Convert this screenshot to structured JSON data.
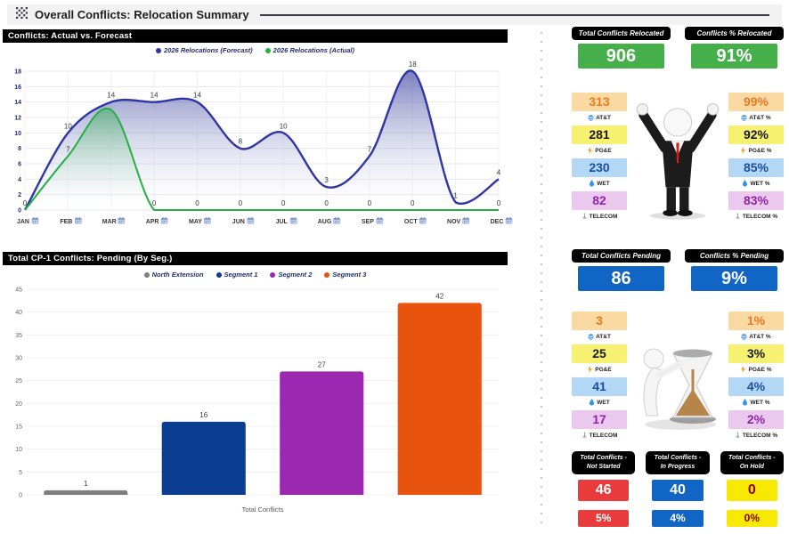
{
  "header": {
    "title": "Overall Conflicts: Relocation Summary"
  },
  "panels": {
    "forecast_title": "Conflicts:  Actual vs. Forecast",
    "pending_title": "Total CP-1 Conflicts:  Pending (By Seg.)"
  },
  "chart_data": [
    {
      "type": "area",
      "title": "Conflicts: Actual vs. Forecast",
      "categories": [
        "JAN",
        "FEB",
        "MAR",
        "APR",
        "MAY",
        "JUN",
        "JUL",
        "AUG",
        "SEP",
        "OCT",
        "NOV",
        "DEC"
      ],
      "series": [
        {
          "name": "2026 Relocations (Forecast)",
          "color": "#2e35a5",
          "fill_top": "#4c52a8",
          "values": [
            0,
            10,
            14,
            14,
            14,
            8,
            10,
            3,
            7,
            18,
            1,
            4
          ],
          "labels": [
            "0",
            "10",
            "14",
            "14",
            "14",
            "8",
            "10",
            "3",
            "7",
            "18",
            "1",
            "4"
          ]
        },
        {
          "name": "2026 Relocations (Actual)",
          "color": "#27ae45",
          "fill_top": "#3fae62",
          "values": [
            0,
            7,
            13,
            0,
            0,
            0,
            0,
            0,
            0,
            0,
            0,
            0
          ],
          "labels": [
            null,
            "7",
            null,
            "0",
            "0",
            "0",
            "0",
            "0",
            "0",
            "0",
            null,
            "0"
          ]
        }
      ],
      "ylim": [
        0,
        18
      ],
      "ytick_step": 2,
      "grid": true,
      "legend_position": "top"
    },
    {
      "type": "bar",
      "title": "Total CP-1 Conflicts: Pending (By Seg.)",
      "categories": [
        "North Extension",
        "Segment 1",
        "Segment 2",
        "Segment 3"
      ],
      "values": [
        1,
        16,
        27,
        42
      ],
      "colors": [
        "#7f7f7f",
        "#0b3d91",
        "#9c27b0",
        "#e8540e"
      ],
      "xlabel": "Total Conflicts",
      "ylim": [
        0,
        45
      ],
      "ytick_step": 5,
      "grid": true,
      "legend_position": "top"
    }
  ],
  "kpi": {
    "relocated": {
      "total_label": "Total Conflicts Relocated",
      "total_value": "906",
      "pct_label": "Conflicts % Relocated",
      "pct_value": "91%",
      "box_color": "#45b049",
      "utilities": [
        {
          "name": "AT&T",
          "icon": "att-icon",
          "count": "313",
          "pct": "99%",
          "bg": "#fbd9a3",
          "fg": "#e87a22"
        },
        {
          "name": "PG&E",
          "icon": "bolt-icon",
          "count": "281",
          "pct": "92%",
          "bg": "#f7f172",
          "fg": "#1a1a1a"
        },
        {
          "name": "WET",
          "icon": "water-drop-icon",
          "count": "230",
          "pct": "85%",
          "bg": "#b3d8f6",
          "fg": "#1d4fa1"
        },
        {
          "name": "TELECOM",
          "icon": "antenna-icon",
          "count": "82",
          "pct": "83%",
          "bg": "#ebc8ee",
          "fg": "#8f24a8"
        }
      ]
    },
    "pending": {
      "total_label": "Total Conflicts Pending",
      "total_value": "86",
      "pct_label": "Conflicts % Pending",
      "pct_value": "9%",
      "box_color": "#1165c5",
      "utilities": [
        {
          "name": "AT&T",
          "icon": "att-icon",
          "count": "3",
          "pct": "1%",
          "bg": "#fbd9a3",
          "fg": "#e87a22"
        },
        {
          "name": "PG&E",
          "icon": "bolt-icon",
          "count": "25",
          "pct": "3%",
          "bg": "#f7f172",
          "fg": "#1a1a1a"
        },
        {
          "name": "WET",
          "icon": "water-drop-icon",
          "count": "41",
          "pct": "4%",
          "bg": "#b3d8f6",
          "fg": "#1d4fa1"
        },
        {
          "name": "TELECOM",
          "icon": "antenna-icon",
          "count": "17",
          "pct": "2%",
          "bg": "#ebc8ee",
          "fg": "#8f24a8"
        }
      ]
    },
    "status": [
      {
        "label_top": "Total Conflicts -",
        "label_bottom": "Not Started",
        "value": "46",
        "pct": "5%",
        "bg": "#e93a3c",
        "fg": "#ffffff"
      },
      {
        "label_top": "Total Conflicts -",
        "label_bottom": "In Progress",
        "value": "40",
        "pct": "4%",
        "bg": "#1165c5",
        "fg": "#ffffff"
      },
      {
        "label_top": "Total Conflicts -",
        "label_bottom": "On Hold",
        "value": "0",
        "pct": "0%",
        "bg": "#f7ea00",
        "fg": "#8b0000"
      }
    ]
  }
}
